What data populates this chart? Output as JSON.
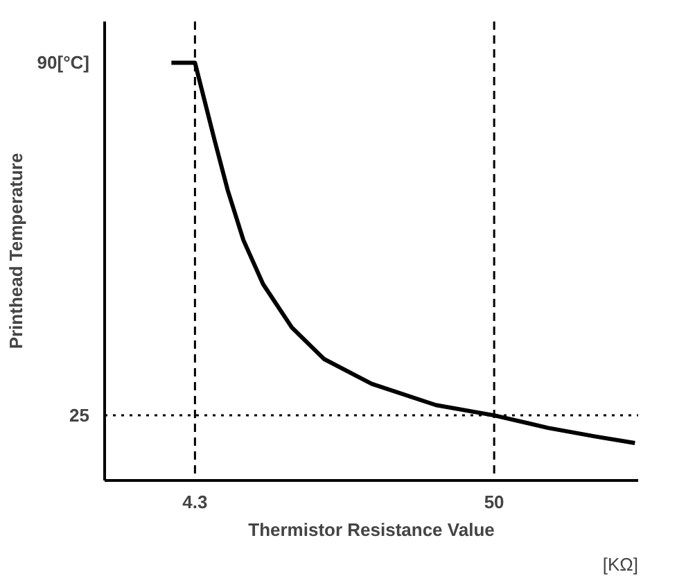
{
  "chart_data": {
    "type": "line",
    "xlabel": "Thermistor Resistance Value",
    "ylabel": "Printhead Temperature",
    "x": [
      0.7,
      4.3,
      5.6,
      7.3,
      9.3,
      11.7,
      14.7,
      19.1,
      24.0,
      31.3,
      41.1,
      50,
      58.2,
      65.5,
      71.5
    ],
    "series": [
      {
        "color": "#000000",
        "values": [
          90,
          90,
          83.8,
          75.7,
          66.5,
          57.3,
          49.2,
          41.2,
          35.4,
          30.8,
          26.9,
          25,
          22.7,
          21.1,
          19.9
        ]
      }
    ],
    "xlim": [
      -9.5,
      72
    ],
    "ylim": [
      13,
      97.6
    ],
    "xticks": [
      4.3,
      50
    ],
    "yticks": [
      25,
      {
        "value": 90,
        "label": "90[°C]"
      }
    ],
    "ref_lines": [
      {
        "axis": "x",
        "value": 4.3,
        "line_style": "dashed",
        "color": "#000000"
      },
      {
        "axis": "x",
        "value": 50,
        "line_style": "dashed",
        "color": "#000000"
      },
      {
        "axis": "y",
        "value": 25,
        "line_style": "dotted",
        "color": "#000000"
      }
    ],
    "annotations": [
      "[KΩ]"
    ],
    "grid": false,
    "marker": "none",
    "line_style": "solid"
  }
}
